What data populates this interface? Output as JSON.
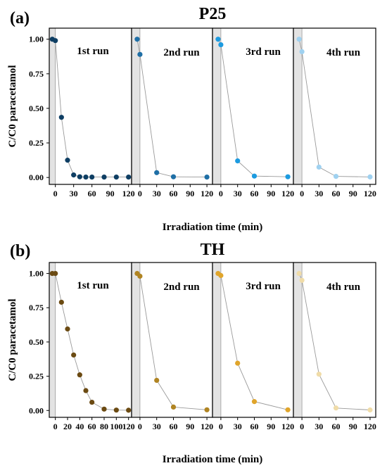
{
  "chart_data": [
    {
      "type": "scatter",
      "panel_label": "(a)",
      "title": "P25",
      "ylabel": "C/C0 paracetamol",
      "xlabel": "Irradiation time (min)",
      "ylim": [
        -0.05,
        1.08
      ],
      "yticks": [
        "0.00",
        "0.25",
        "0.50",
        "0.75",
        "1.00"
      ],
      "runs": [
        {
          "label": "1st run",
          "color": "#0e3e63",
          "xlim": [
            -10,
            125
          ],
          "xticks": [
            0,
            30,
            60,
            90,
            120
          ],
          "dark_band": [
            -10,
            0
          ],
          "points": [
            [
              -5,
              1.0
            ],
            [
              0,
              0.99
            ],
            [
              10,
              0.435
            ],
            [
              20,
              0.125
            ],
            [
              30,
              0.018
            ],
            [
              40,
              0.005
            ],
            [
              50,
              0.003
            ],
            [
              60,
              0.003
            ],
            [
              80,
              0.003
            ],
            [
              100,
              0.003
            ],
            [
              120,
              0.003
            ]
          ]
        },
        {
          "label": "2nd run",
          "color": "#1f6fa6",
          "xlim": [
            -15,
            130
          ],
          "xticks": [
            0,
            30,
            60,
            90,
            120
          ],
          "dark_band": [
            -15,
            0
          ],
          "points": [
            [
              -5,
              1.0
            ],
            [
              0,
              0.89
            ],
            [
              30,
              0.035
            ],
            [
              60,
              0.005
            ],
            [
              120,
              0.003
            ]
          ]
        },
        {
          "label": "3rd run",
          "color": "#1c9be0",
          "xlim": [
            -15,
            130
          ],
          "xticks": [
            0,
            30,
            60,
            90,
            120
          ],
          "dark_band": [
            -15,
            0
          ],
          "points": [
            [
              -5,
              1.0
            ],
            [
              0,
              0.96
            ],
            [
              30,
              0.12
            ],
            [
              60,
              0.01
            ],
            [
              120,
              0.005
            ]
          ]
        },
        {
          "label": "4th run",
          "color": "#9fd1f0",
          "xlim": [
            -15,
            130
          ],
          "xticks": [
            0,
            30,
            60,
            90,
            120
          ],
          "dark_band": [
            -15,
            0
          ],
          "points": [
            [
              -5,
              1.0
            ],
            [
              0,
              0.91
            ],
            [
              30,
              0.075
            ],
            [
              60,
              0.008
            ],
            [
              120,
              0.004
            ]
          ]
        }
      ]
    },
    {
      "type": "scatter",
      "panel_label": "(b)",
      "title": "TH",
      "ylabel": "C/C0 paracetamol",
      "xlabel": "Irradiation time (min)",
      "ylim": [
        -0.05,
        1.08
      ],
      "yticks": [
        "0.00",
        "0.25",
        "0.50",
        "0.75",
        "1.00"
      ],
      "runs": [
        {
          "label": "1st run",
          "color": "#6b4a12",
          "xlim": [
            -10,
            125
          ],
          "xticks": [
            0,
            20,
            40,
            60,
            80,
            100,
            120
          ],
          "dark_band": [
            -10,
            0
          ],
          "points": [
            [
              -5,
              1.0
            ],
            [
              0,
              1.0
            ],
            [
              10,
              0.79
            ],
            [
              20,
              0.595
            ],
            [
              30,
              0.405
            ],
            [
              40,
              0.26
            ],
            [
              50,
              0.145
            ],
            [
              60,
              0.06
            ],
            [
              80,
              0.01
            ],
            [
              100,
              0.003
            ],
            [
              120,
              0.002
            ]
          ]
        },
        {
          "label": "2nd run",
          "color": "#b08422",
          "xlim": [
            -15,
            130
          ],
          "xticks": [
            0,
            30,
            60,
            90,
            120
          ],
          "dark_band": [
            -15,
            0
          ],
          "points": [
            [
              -5,
              1.0
            ],
            [
              0,
              0.98
            ],
            [
              30,
              0.22
            ],
            [
              60,
              0.025
            ],
            [
              120,
              0.005
            ]
          ]
        },
        {
          "label": "3rd run",
          "color": "#e0a52b",
          "xlim": [
            -15,
            130
          ],
          "xticks": [
            0,
            30,
            60,
            90,
            120
          ],
          "dark_band": [
            -15,
            0
          ],
          "points": [
            [
              -5,
              1.0
            ],
            [
              0,
              0.985
            ],
            [
              30,
              0.345
            ],
            [
              60,
              0.065
            ],
            [
              120,
              0.005
            ]
          ]
        },
        {
          "label": "4th run",
          "color": "#f0dca8",
          "xlim": [
            -15,
            130
          ],
          "xticks": [
            0,
            30,
            60,
            90,
            120
          ],
          "dark_band": [
            -15,
            0
          ],
          "points": [
            [
              -5,
              1.0
            ],
            [
              0,
              0.95
            ],
            [
              30,
              0.265
            ],
            [
              60,
              0.018
            ],
            [
              120,
              0.004
            ]
          ]
        }
      ]
    }
  ]
}
